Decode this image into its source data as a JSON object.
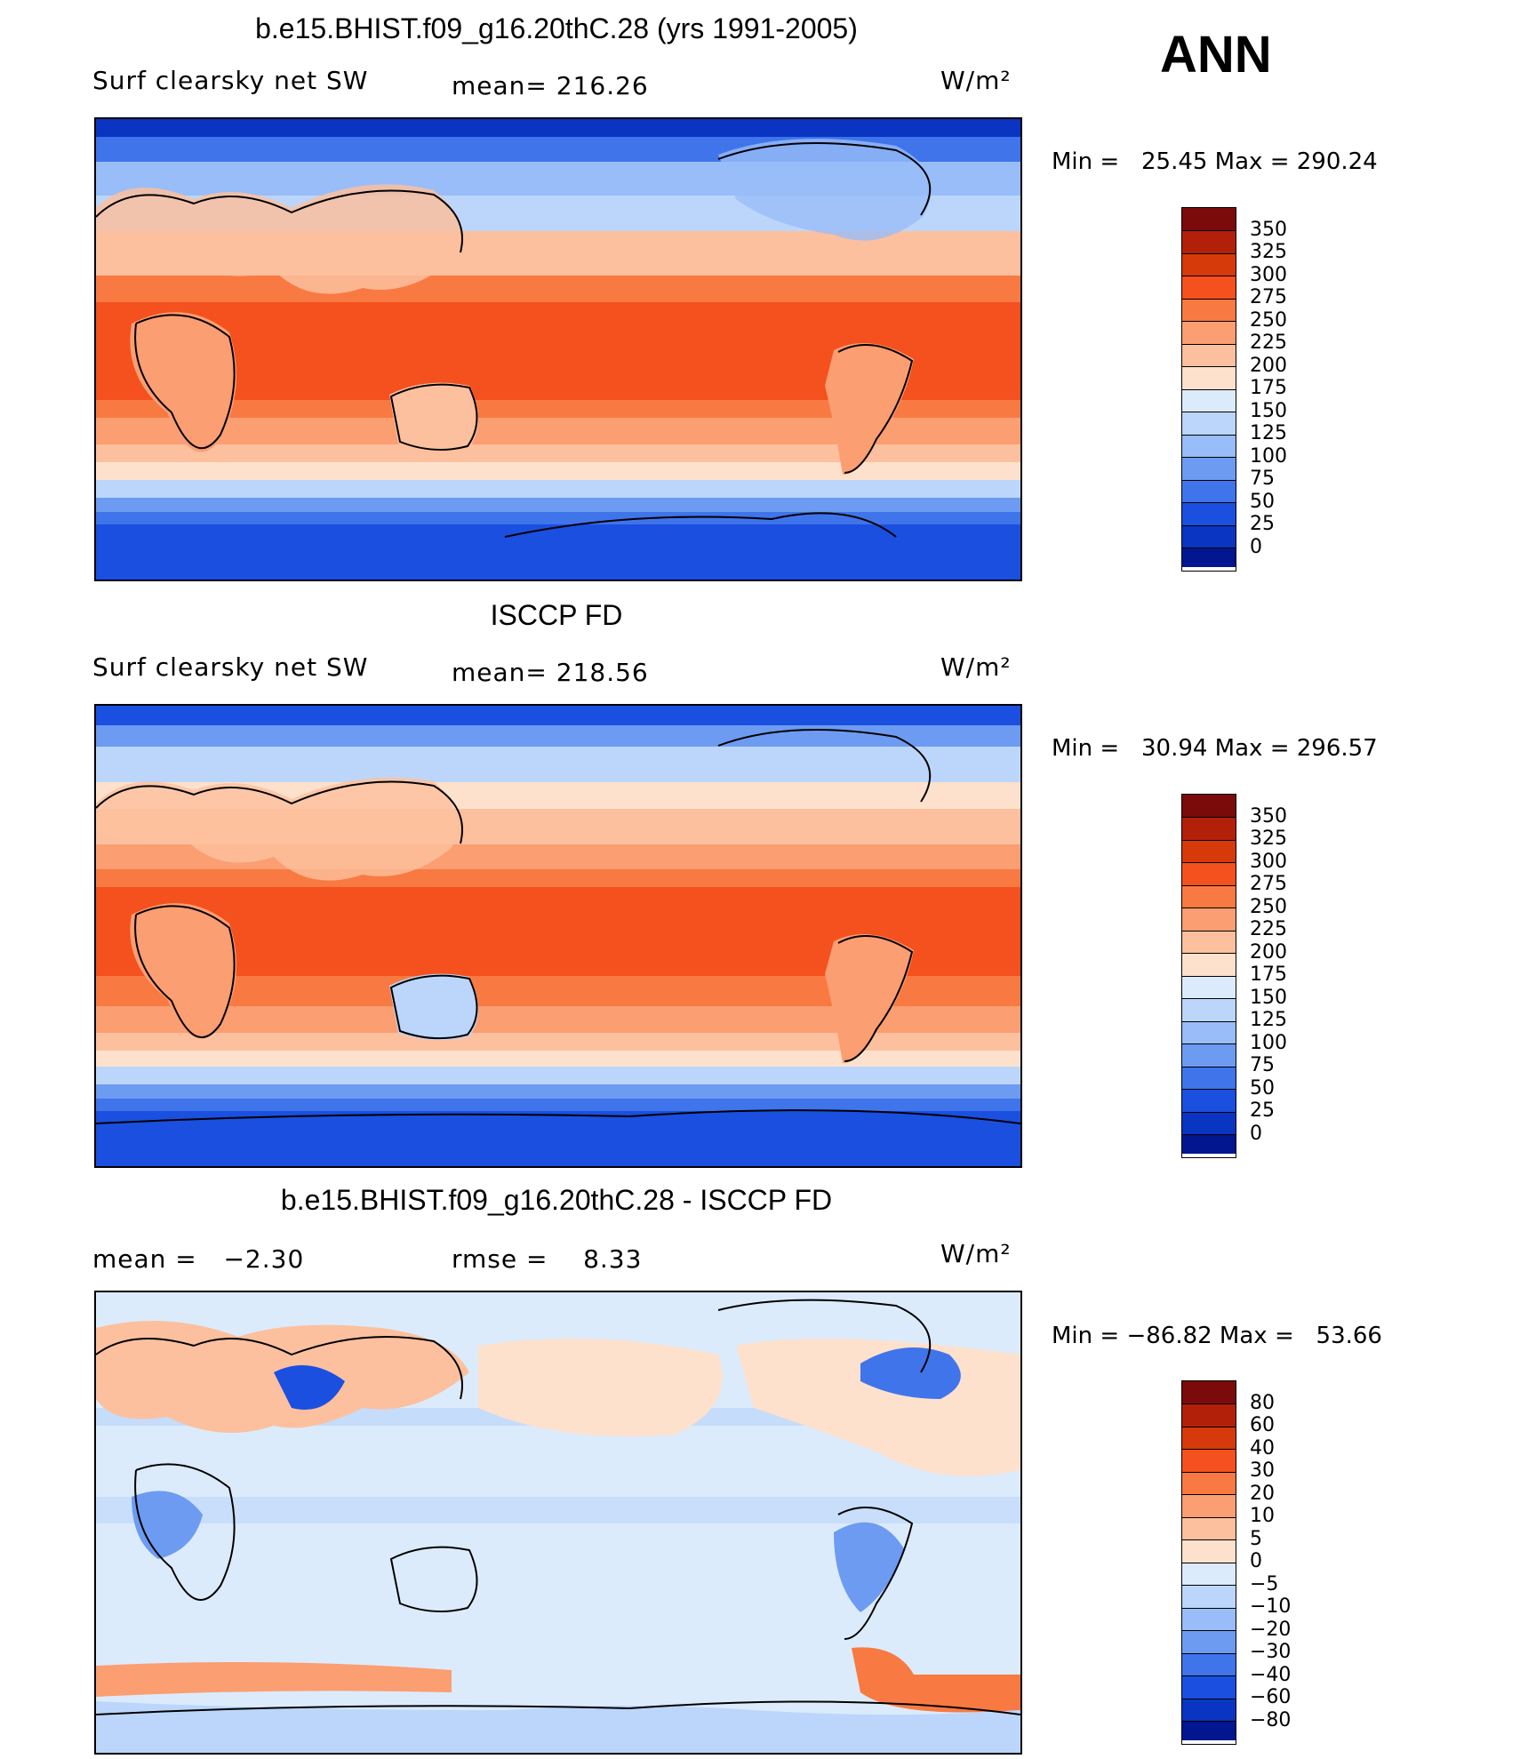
{
  "season": "ANN",
  "panels": [
    {
      "title": "b.e15.BHIST.f09_g16.20thC.28 (yrs 1991-2005)",
      "left_label": "Surf clearsky net SW",
      "center_label": "mean= 216.26",
      "units": "W/m²",
      "min_max": "Min =   25.45 Max = 290.24",
      "colorbar_labels": [
        "350",
        "325",
        "300",
        "275",
        "250",
        "225",
        "200",
        "175",
        "150",
        "125",
        "100",
        "75",
        "50",
        "25",
        "0"
      ]
    },
    {
      "title": "ISCCP FD",
      "left_label": "Surf clearsky net SW",
      "center_label": "mean= 218.56",
      "units": "W/m²",
      "min_max": "Min =   30.94 Max = 296.57",
      "colorbar_labels": [
        "350",
        "325",
        "300",
        "275",
        "250",
        "225",
        "200",
        "175",
        "150",
        "125",
        "100",
        "75",
        "50",
        "25",
        "0"
      ]
    },
    {
      "title": "b.e15.BHIST.f09_g16.20thC.28 - ISCCP FD",
      "left_label": "mean =   −2.30",
      "center_label": "rmse =    8.33",
      "units": "W/m²",
      "min_max": "Min = −86.82 Max =   53.66",
      "colorbar_labels": [
        "80",
        "60",
        "40",
        "30",
        "20",
        "10",
        "5",
        "0",
        "−5",
        "−10",
        "−20",
        "−30",
        "−40",
        "−60",
        "−80"
      ]
    }
  ],
  "colors": {
    "scale": [
      "#7b0a0a",
      "#b3200a",
      "#d63a0a",
      "#f4511e",
      "#f87a42",
      "#fb9e72",
      "#fcc09e",
      "#fde1cc",
      "#dcebfb",
      "#bcd6fb",
      "#98bdf8",
      "#6d9bf2",
      "#3f74eb",
      "#1a4fe0",
      "#0a35c2",
      "#02168f"
    ]
  }
}
